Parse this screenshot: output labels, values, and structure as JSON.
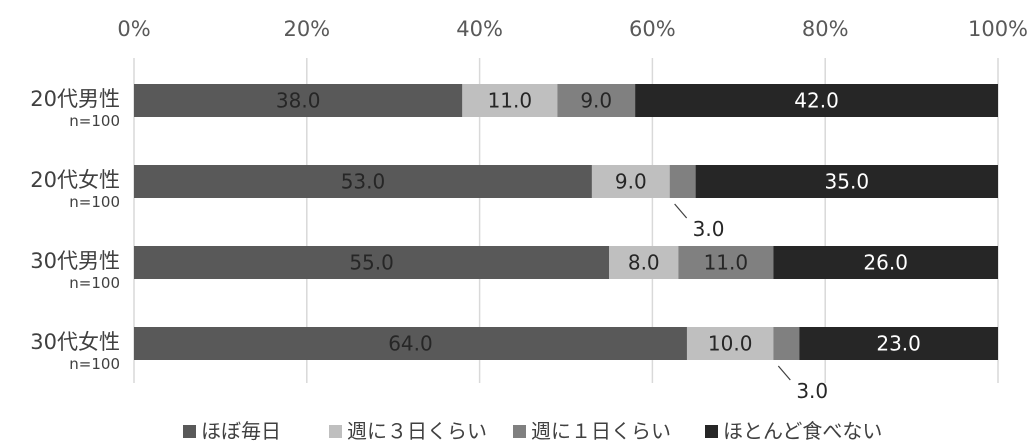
{
  "chart_data": {
    "type": "bar",
    "orientation": "horizontal",
    "stacked": "percent",
    "xlim": [
      0,
      100
    ],
    "x_ticks": [
      "0%",
      "20%",
      "40%",
      "60%",
      "80%",
      "100%"
    ],
    "x_tick_values": [
      0,
      20,
      40,
      60,
      80,
      100
    ],
    "grid": true,
    "legend_position": "bottom",
    "categories": [
      "20代男性",
      "20代女性",
      "30代男性",
      "30代女性"
    ],
    "category_sublabels": [
      "n=100",
      "n=100",
      "n=100",
      "n=100"
    ],
    "series": [
      {
        "name": "ほぼ毎日",
        "color": "#595959",
        "label_color": "#262626",
        "values": [
          38.0,
          53.0,
          55.0,
          64.0
        ],
        "labels": [
          "38.0",
          "53.0",
          "55.0",
          "64.0"
        ]
      },
      {
        "name": "週に３日くらい",
        "color": "#bfbfbf",
        "label_color": "#262626",
        "values": [
          11.0,
          9.0,
          8.0,
          10.0
        ],
        "labels": [
          "11.0",
          "9.0",
          "8.0",
          "10.0"
        ]
      },
      {
        "name": "週に１日くらい",
        "color": "#808080",
        "label_color": "#262626",
        "values": [
          9.0,
          3.0,
          11.0,
          3.0
        ],
        "labels": [
          "9.0",
          "3.0",
          "11.0",
          "3.0"
        ],
        "callout": [
          false,
          true,
          false,
          true
        ]
      },
      {
        "name": "ほとんど食べない",
        "color": "#262626",
        "label_color": "#ffffff",
        "values": [
          42.0,
          35.0,
          26.0,
          23.0
        ],
        "labels": [
          "42.0",
          "35.0",
          "26.0",
          "23.0"
        ]
      }
    ]
  }
}
